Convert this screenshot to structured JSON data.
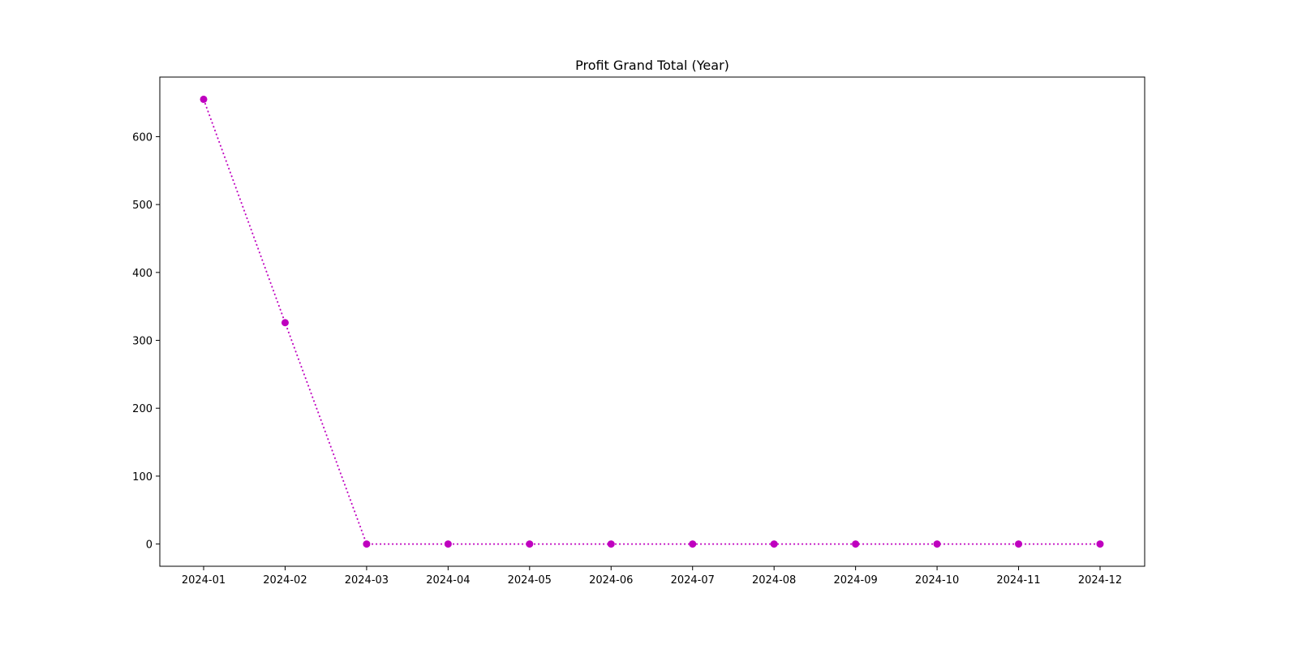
{
  "chart_data": {
    "type": "line",
    "title": "Profit Grand Total (Year)",
    "xlabel": "",
    "ylabel": "",
    "categories": [
      "2024-01",
      "2024-02",
      "2024-03",
      "2024-04",
      "2024-05",
      "2024-06",
      "2024-07",
      "2024-08",
      "2024-09",
      "2024-10",
      "2024-11",
      "2024-12"
    ],
    "series": [
      {
        "values": [
          655,
          326,
          0,
          0,
          0,
          0,
          0,
          0,
          0,
          0,
          0,
          0
        ],
        "color": "#bf00bf",
        "line_style": "dotted",
        "marker": "circle"
      }
    ],
    "ylim": [
      -32.75,
      687.75
    ],
    "y_ticks": [
      0,
      100,
      200,
      300,
      400,
      500,
      600
    ],
    "grid": false,
    "legend": "none"
  }
}
